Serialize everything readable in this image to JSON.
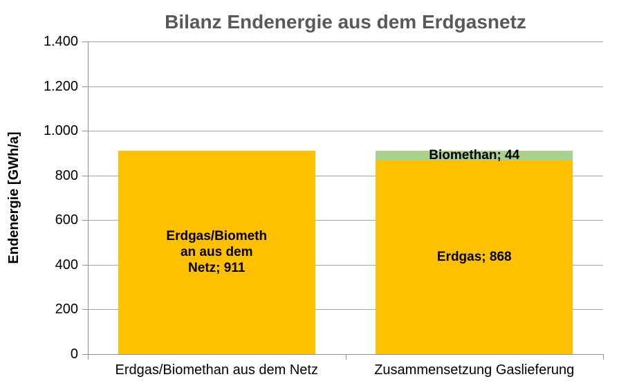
{
  "chart_data": {
    "type": "bar",
    "stacked": true,
    "title": "Bilanz Endenergie aus dem Erdgasnetz",
    "ylabel": "Endenergie [GWh/a]",
    "xlabel": "",
    "ylim": [
      0,
      1400
    ],
    "grid": true,
    "legend": false,
    "title_color": "#595959",
    "gridline_color": "#a6a6a6",
    "yticks": [
      {
        "value": 0,
        "label": "0"
      },
      {
        "value": 200,
        "label": "200"
      },
      {
        "value": 400,
        "label": "400"
      },
      {
        "value": 600,
        "label": "600"
      },
      {
        "value": 800,
        "label": "800"
      },
      {
        "value": 1000,
        "label": "1.000"
      },
      {
        "value": 1200,
        "label": "1.200"
      },
      {
        "value": 1400,
        "label": "1.400"
      }
    ],
    "categories": [
      "Erdgas/Biomethan aus dem Netz",
      "Zusammensetzung Gaslieferung"
    ],
    "bars": [
      {
        "category": "Erdgas/Biomethan aus dem Netz",
        "segments": [
          {
            "name": "Erdgas/Biomethan aus dem Netz",
            "value": 911,
            "color": "#FFC000",
            "label": "Erdgas/Biomethan aus dem Netz; 911",
            "label_lines": [
              "Erdgas/Biometh",
              "an aus dem",
              "Netz; 911"
            ]
          }
        ]
      },
      {
        "category": "Zusammensetzung Gaslieferung",
        "segments": [
          {
            "name": "Erdgas",
            "value": 868,
            "color": "#FFC000",
            "label": "Erdgas; 868",
            "label_lines": [
              "Erdgas; 868"
            ]
          },
          {
            "name": "Biomethan",
            "value": 44,
            "color": "#A9D08E",
            "label": "Biomethan; 44",
            "label_lines": [
              "Biomethan; 44"
            ]
          }
        ]
      }
    ]
  }
}
